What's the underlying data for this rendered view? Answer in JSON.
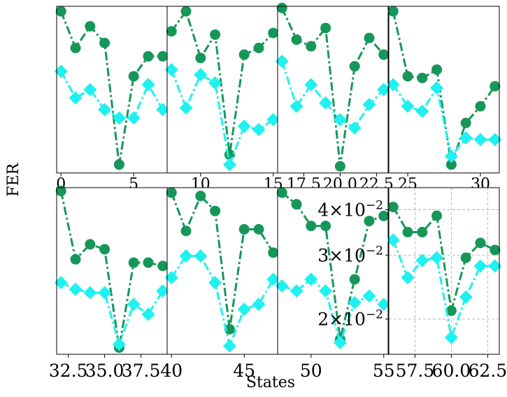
{
  "figure": {
    "ylabel": "FER",
    "xlabel": "States"
  },
  "colors": {
    "series_a": "#17965a",
    "series_b": "#1ff0f0",
    "grid": "#b0b0b0",
    "frame": "#000000"
  },
  "chart_data": [
    {
      "type": "line",
      "panel": "top-1",
      "x": [
        0,
        1,
        2,
        3,
        4,
        5,
        6,
        7
      ],
      "xlim": [
        -0.3,
        7.3
      ],
      "ylim": [
        0.0,
        1.0
      ],
      "xticks": [
        0,
        5
      ],
      "xtick_labels": [
        "0",
        "5"
      ],
      "series": [
        {
          "values": [
            0.97,
            0.75,
            0.88,
            0.78,
            0.05,
            0.58,
            0.7,
            0.7
          ]
        },
        {
          "values": [
            0.61,
            0.45,
            0.5,
            0.38,
            0.33,
            0.33,
            0.53,
            0.38
          ]
        }
      ]
    },
    {
      "type": "line",
      "panel": "top-2",
      "x": [
        8,
        9,
        10,
        11,
        12,
        13,
        14,
        15
      ],
      "xlim": [
        7.7,
        15.3
      ],
      "ylim": [
        0.0,
        1.0
      ],
      "xticks": [
        10,
        15
      ],
      "xtick_labels": [
        "10",
        "15"
      ],
      "series": [
        {
          "values": [
            0.85,
            0.97,
            0.69,
            0.83,
            0.11,
            0.71,
            0.75,
            0.84
          ]
        },
        {
          "values": [
            0.62,
            0.39,
            0.59,
            0.54,
            0.05,
            0.28,
            0.26,
            0.32
          ]
        }
      ]
    },
    {
      "type": "line",
      "panel": "top-3",
      "x": [
        16,
        17,
        18,
        19,
        20,
        21,
        22,
        23
      ],
      "xlim": [
        15.7,
        23.3
      ],
      "ylim": [
        0.0,
        1.0
      ],
      "xticks": [
        17.5,
        20.0,
        22.5
      ],
      "xtick_labels": [
        "17.5",
        "20.0",
        "22.5"
      ],
      "series": [
        {
          "values": [
            0.99,
            0.8,
            0.76,
            0.87,
            0.04,
            0.64,
            0.81,
            0.71
          ]
        },
        {
          "values": [
            0.67,
            0.4,
            0.53,
            0.42,
            0.32,
            0.27,
            0.41,
            0.5
          ]
        }
      ]
    },
    {
      "type": "line",
      "panel": "top-4",
      "x": [
        24,
        25,
        26,
        27,
        28,
        29,
        30,
        31
      ],
      "xlim": [
        23.7,
        31.3
      ],
      "ylim": [
        0.0,
        1.0
      ],
      "xticks": [
        25,
        30
      ],
      "xtick_labels": [
        "25",
        "30"
      ],
      "series": [
        {
          "values": [
            0.97,
            0.58,
            0.57,
            0.62,
            0.05,
            0.3,
            0.4,
            0.52
          ]
        },
        {
          "values": [
            0.53,
            0.4,
            0.37,
            0.51,
            0.1,
            0.21,
            0.2,
            0.2
          ]
        }
      ]
    },
    {
      "type": "line",
      "panel": "bottom-1",
      "x": [
        32,
        33,
        34,
        35,
        36,
        37,
        38,
        39
      ],
      "xlim": [
        31.7,
        39.3
      ],
      "ylim": [
        0.0,
        1.0
      ],
      "xticks": [
        32.5,
        35.0,
        37.5
      ],
      "xtick_labels": [
        "32.5",
        "35.0",
        "37.5"
      ],
      "series": [
        {
          "values": [
            0.98,
            0.57,
            0.66,
            0.63,
            0.04,
            0.55,
            0.55,
            0.53
          ]
        },
        {
          "values": [
            0.43,
            0.39,
            0.37,
            0.37,
            0.06,
            0.3,
            0.24,
            0.38
          ]
        }
      ]
    },
    {
      "type": "line",
      "panel": "bottom-2",
      "x": [
        40,
        41,
        42,
        43,
        44,
        45,
        46,
        47
      ],
      "xlim": [
        39.7,
        47.3
      ],
      "ylim": [
        0.0,
        1.0
      ],
      "xticks": [
        40,
        45
      ],
      "xtick_labels": [
        "40",
        "45"
      ],
      "series": [
        {
          "values": [
            0.97,
            0.74,
            0.95,
            0.86,
            0.15,
            0.75,
            0.75,
            0.61
          ]
        },
        {
          "values": [
            0.46,
            0.59,
            0.59,
            0.43,
            0.05,
            0.27,
            0.3,
            0.45
          ]
        }
      ]
    },
    {
      "type": "line",
      "panel": "bottom-3",
      "x": [
        48,
        49,
        50,
        51,
        52,
        53,
        54,
        55
      ],
      "xlim": [
        47.7,
        55.3
      ],
      "ylim": [
        0.0,
        1.0
      ],
      "xticks": [
        50,
        55
      ],
      "xtick_labels": [
        "50",
        "55"
      ],
      "series": [
        {
          "values": [
            0.97,
            0.9,
            0.77,
            0.77,
            0.09,
            0.45,
            0.8,
            0.83
          ]
        },
        {
          "values": [
            0.41,
            0.38,
            0.45,
            0.38,
            0.07,
            0.31,
            0.35,
            0.3
          ]
        }
      ]
    },
    {
      "type": "line",
      "panel": "bottom-4",
      "x": [
        56,
        57,
        58,
        59,
        60,
        61,
        62,
        63
      ],
      "xlim": [
        55.7,
        63.3
      ],
      "ylim": [
        0.016,
        0.046
      ],
      "yscale": "log",
      "grid": true,
      "xticks": [
        57.5,
        60.0,
        62.5
      ],
      "xtick_labels": [
        "57.5",
        "60.0",
        "62.5"
      ],
      "yticks": [
        0.02,
        0.03,
        0.04
      ],
      "series": [
        {
          "values": [
            0.0407,
            0.0347,
            0.0347,
            0.0385,
            0.0211,
            0.0295,
            0.0324,
            0.031
          ]
        },
        {
          "values": [
            0.033,
            0.026,
            0.029,
            0.0295,
            0.0178,
            0.023,
            0.028,
            0.028
          ]
        }
      ]
    }
  ]
}
